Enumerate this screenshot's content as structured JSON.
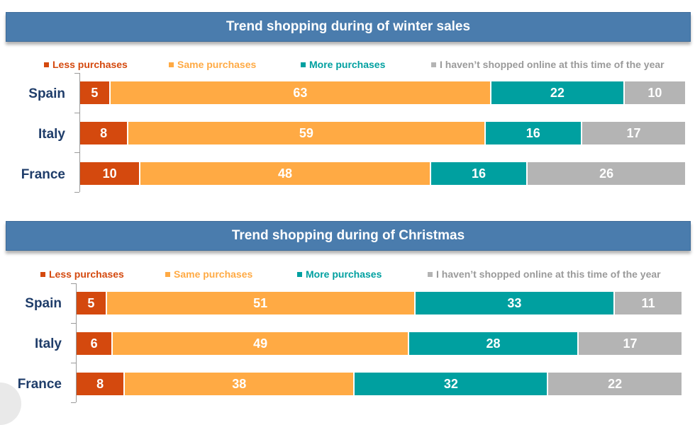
{
  "colors": {
    "banner": "#4a7cad",
    "less": "#d4490e",
    "same": "#ffaa44",
    "more": "#00a0a0",
    "none": "#b4b4b4",
    "country_label": "#1f3d6a"
  },
  "chart_data": [
    {
      "type": "bar",
      "orientation": "horizontal",
      "stacked": true,
      "title": "Trend shopping during of winter sales",
      "categories": [
        "Spain",
        "Italy",
        "France"
      ],
      "series": [
        {
          "name": "Less purchases",
          "values": [
            5,
            8,
            10
          ],
          "labels": [
            "5",
            "8",
            "10"
          ]
        },
        {
          "name": "Same purchases",
          "values": [
            63,
            59,
            48
          ],
          "labels": [
            "63",
            "59",
            "48"
          ]
        },
        {
          "name": "More purchases",
          "values": [
            22,
            16,
            16
          ],
          "labels": [
            "22",
            "16",
            "16"
          ]
        },
        {
          "name": "I haven’t shopped online at this time of the year",
          "values": [
            10,
            17,
            26
          ],
          "labels": [
            "10",
            "17",
            "26"
          ]
        }
      ],
      "legend_position": "top",
      "grid": false
    },
    {
      "type": "bar",
      "orientation": "horizontal",
      "stacked": true,
      "title": "Trend shopping during of Christmas",
      "categories": [
        "Spain",
        "Italy",
        "France"
      ],
      "series": [
        {
          "name": "Less purchases",
          "values": [
            5,
            6,
            8
          ],
          "labels": [
            "5",
            "6",
            "8"
          ]
        },
        {
          "name": "Same purchases",
          "values": [
            51,
            49,
            38
          ],
          "labels": [
            "51",
            "49",
            "38"
          ]
        },
        {
          "name": "More purchases",
          "values": [
            33,
            28,
            32
          ],
          "labels": [
            "33",
            "28",
            "32"
          ]
        },
        {
          "name": "I haven’t shopped online at this time of the year",
          "values": [
            11,
            17,
            22
          ],
          "labels": [
            "11",
            "17",
            "22"
          ]
        }
      ],
      "legend_position": "top",
      "grid": false
    }
  ]
}
